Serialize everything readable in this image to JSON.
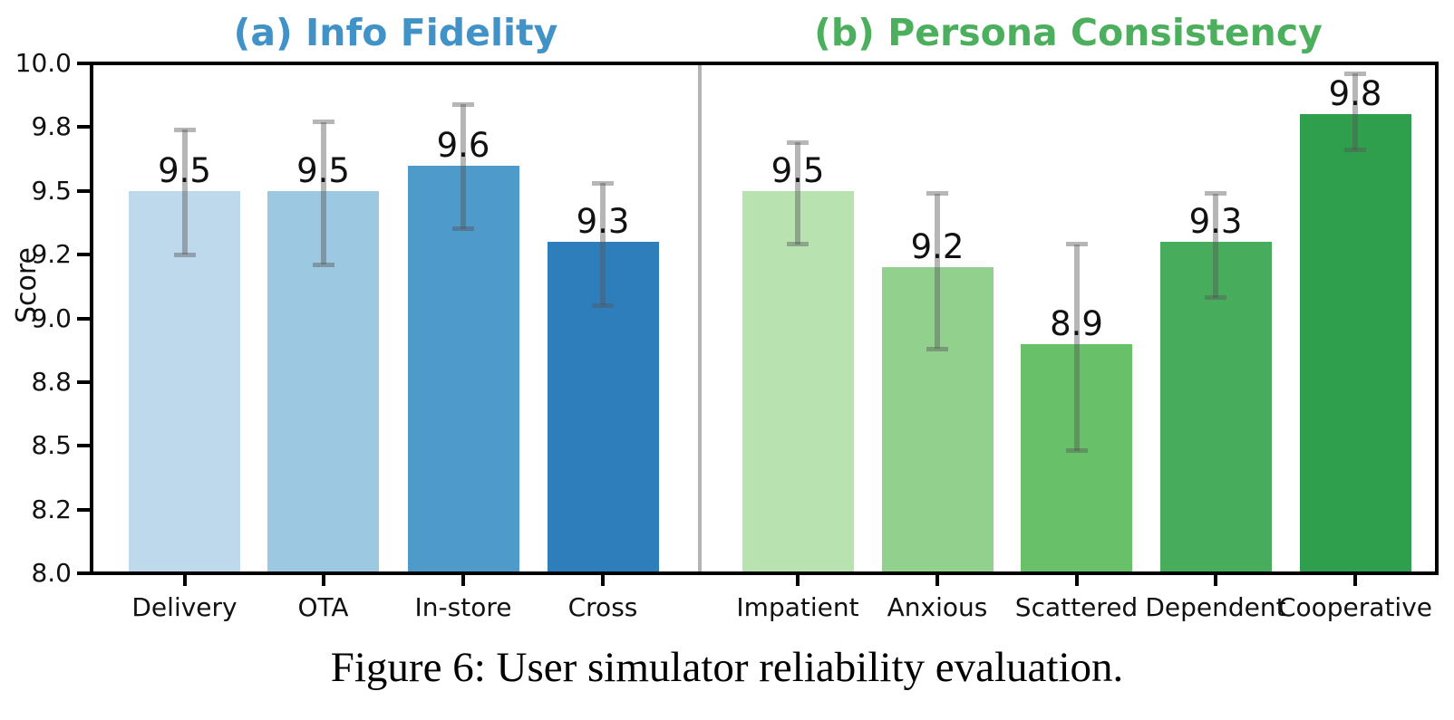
{
  "figure": {
    "caption": "Figure 6: User simulator reliability evaluation."
  },
  "chart_data": {
    "type": "bar",
    "title": "User simulator reliability evaluation",
    "xlabel": "",
    "ylabel": "Score",
    "ylim": [
      8.0,
      10.0
    ],
    "grid": false,
    "legend": "none",
    "yticks": [
      {
        "value": 10.0,
        "label": "10.0"
      },
      {
        "value": 9.75,
        "label": "9.8"
      },
      {
        "value": 9.5,
        "label": "9.5"
      },
      {
        "value": 9.25,
        "label": "9.2"
      },
      {
        "value": 9.0,
        "label": "9.0"
      },
      {
        "value": 8.75,
        "label": "8.8"
      },
      {
        "value": 8.5,
        "label": "8.5"
      },
      {
        "value": 8.25,
        "label": "8.2"
      },
      {
        "value": 8.0,
        "label": "8.0"
      }
    ],
    "error_bar_color": "rgba(85,85,85,0.43)",
    "divider_color": "#b4b4b4",
    "panels": [
      {
        "id": "a",
        "title": "(a) Info Fidelity",
        "title_color": "#4193c7",
        "bars": [
          {
            "category": "Delivery",
            "value": 9.5,
            "label": "9.5",
            "err_low": 9.25,
            "err_high": 9.74,
            "color": "#bed8ec"
          },
          {
            "category": "OTA",
            "value": 9.5,
            "label": "9.5",
            "err_low": 9.21,
            "err_high": 9.77,
            "color": "#9cc9e1"
          },
          {
            "category": "In-store",
            "value": 9.6,
            "label": "9.6",
            "err_low": 9.35,
            "err_high": 9.84,
            "color": "#4e9acb"
          },
          {
            "category": "Cross",
            "value": 9.3,
            "label": "9.3",
            "err_low": 9.05,
            "err_high": 9.53,
            "color": "#2e7ebc"
          }
        ]
      },
      {
        "id": "b",
        "title": "(b) Persona Consistency",
        "title_color": "#4caf5e",
        "bars": [
          {
            "category": "Impatient",
            "value": 9.5,
            "label": "9.5",
            "err_low": 9.29,
            "err_high": 9.69,
            "color": "#b8e3b1"
          },
          {
            "category": "Anxious",
            "value": 9.2,
            "label": "9.2",
            "err_low": 8.88,
            "err_high": 9.49,
            "color": "#92d18d"
          },
          {
            "category": "Scattered",
            "value": 8.9,
            "label": "8.9",
            "err_low": 8.48,
            "err_high": 9.29,
            "color": "#68c169"
          },
          {
            "category": "Dependent",
            "value": 9.3,
            "label": "9.3",
            "err_low": 9.08,
            "err_high": 9.49,
            "color": "#47ad5d"
          },
          {
            "category": "Cooperative",
            "value": 9.8,
            "label": "9.8",
            "err_low": 9.66,
            "err_high": 9.96,
            "color": "#2f9e4d"
          }
        ]
      }
    ]
  }
}
